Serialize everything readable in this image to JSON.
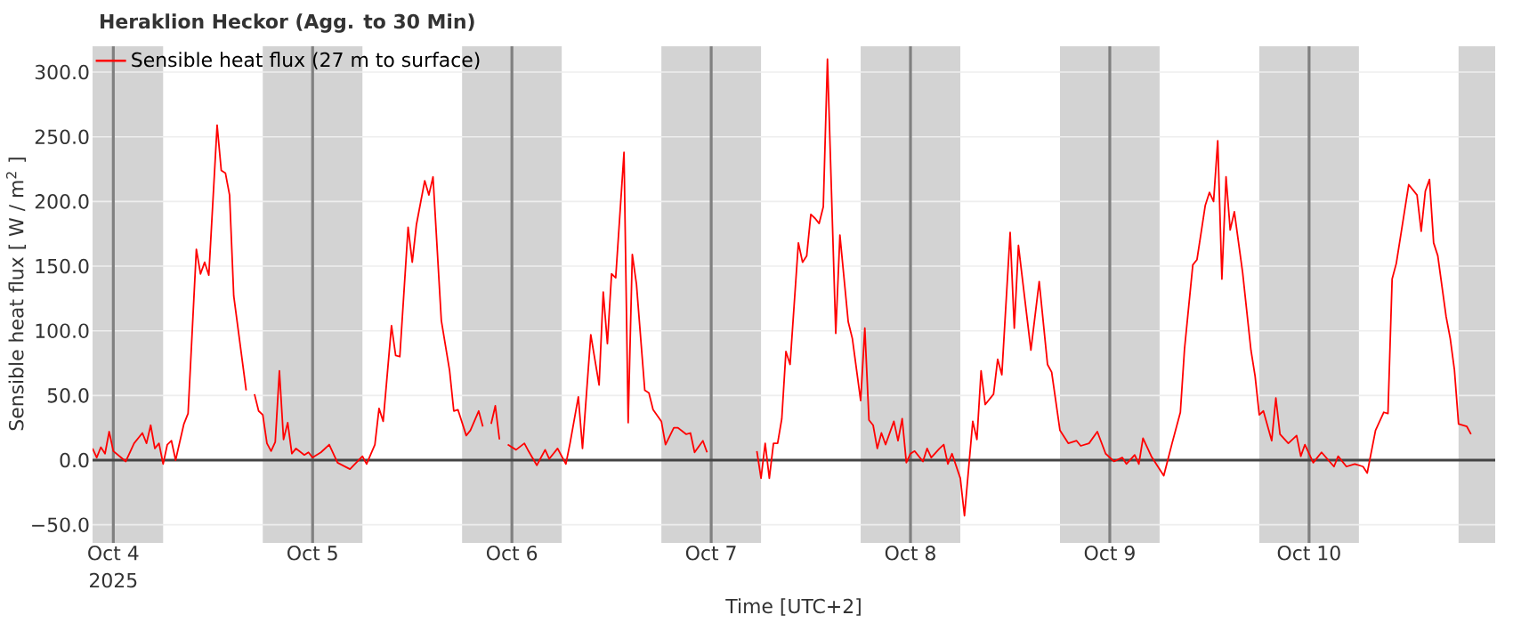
{
  "chart_data": {
    "type": "line",
    "title": "Heraklion Heckor (Agg. to 30 Min)",
    "xlabel": "Time [UTC+2]",
    "ylabel": "Sensible heat flux [ W / m$^{2}$ ]",
    "annotations": [
      "2025"
    ],
    "xlim": [
      "2025-10-03T21:30",
      "2025-10-10T22:25"
    ],
    "xticks": [
      {
        "value": "2025-10-04",
        "label": "Oct 4"
      },
      {
        "value": "2025-10-05",
        "label": "Oct 5"
      },
      {
        "value": "2025-10-06",
        "label": "Oct 6"
      },
      {
        "value": "2025-10-07",
        "label": "Oct 7"
      },
      {
        "value": "2025-10-08",
        "label": "Oct 8"
      },
      {
        "value": "2025-10-09",
        "label": "Oct 9"
      },
      {
        "value": "2025-10-10",
        "label": "Oct 10"
      }
    ],
    "ylim": [
      -64,
      320
    ],
    "yticks": [
      {
        "value": -50,
        "label": "−50.0"
      },
      {
        "value": 0,
        "label": "0.0"
      },
      {
        "value": 50,
        "label": "50.0"
      },
      {
        "value": 100,
        "label": "100.0"
      },
      {
        "value": 150,
        "label": "150.0"
      },
      {
        "value": 200,
        "label": "200.0"
      },
      {
        "value": 250,
        "label": "250.0"
      },
      {
        "value": 300,
        "label": "300.0"
      }
    ],
    "grid": true,
    "legend": "top left",
    "line_style": "solid",
    "ref_lines": [
      {
        "axis": "y",
        "value": 0,
        "color": "#444444"
      }
    ],
    "bands": [
      {
        "axis": "x",
        "from": "2025-10-03T21:30",
        "to": "2025-10-04T06:00",
        "color": "#d3d3d3"
      },
      {
        "axis": "x",
        "from": "2025-10-04T18:00",
        "to": "2025-10-05T06:00",
        "color": "#d3d3d3"
      },
      {
        "axis": "x",
        "from": "2025-10-05T18:00",
        "to": "2025-10-06T06:00",
        "color": "#d3d3d3"
      },
      {
        "axis": "x",
        "from": "2025-10-06T18:00",
        "to": "2025-10-07T06:00",
        "color": "#d3d3d3"
      },
      {
        "axis": "x",
        "from": "2025-10-07T18:00",
        "to": "2025-10-08T06:00",
        "color": "#d3d3d3"
      },
      {
        "axis": "x",
        "from": "2025-10-08T18:00",
        "to": "2025-10-09T06:00",
        "color": "#d3d3d3"
      },
      {
        "axis": "x",
        "from": "2025-10-09T18:00",
        "to": "2025-10-10T06:00",
        "color": "#d3d3d3"
      },
      {
        "axis": "x",
        "from": "2025-10-10T18:00",
        "to": "2025-10-10T22:25",
        "color": "#d3d3d3"
      }
    ],
    "series": [
      {
        "name": "Sensible heat flux (27 m to surface)",
        "color": "#ff0000",
        "x": [
          "2025-10-03T21:30",
          "2025-10-03T22:00",
          "2025-10-03T22:30",
          "2025-10-03T23:00",
          "2025-10-03T23:30",
          "2025-10-04T00:00",
          "2025-10-04T01:30",
          "2025-10-04T02:30",
          "2025-10-04T03:30",
          "2025-10-04T04:00",
          "2025-10-04T04:30",
          "2025-10-04T05:00",
          "2025-10-04T05:30",
          "2025-10-04T06:00",
          "2025-10-04T06:30",
          "2025-10-04T07:00",
          "2025-10-04T07:30",
          "2025-10-04T08:30",
          "2025-10-04T09:00",
          "2025-10-04T10:00",
          "2025-10-04T10:30",
          "2025-10-04T11:00",
          "2025-10-04T11:30",
          "2025-10-04T12:30",
          "2025-10-04T13:00",
          "2025-10-04T13:30",
          "2025-10-04T14:00",
          "2025-10-04T14:30",
          "2025-10-04T16:00",
          "2025-10-04T16:30",
          "2025-10-04T17:00",
          "2025-10-04T17:30",
          "2025-10-04T18:00",
          "2025-10-04T18:30",
          "2025-10-04T19:00",
          "2025-10-04T19:30",
          "2025-10-04T20:00",
          "2025-10-04T20:30",
          "2025-10-04T21:00",
          "2025-10-04T21:30",
          "2025-10-04T22:00",
          "2025-10-04T23:00",
          "2025-10-04T23:30",
          "2025-10-05T00:00",
          "2025-10-05T01:00",
          "2025-10-05T02:00",
          "2025-10-05T03:00",
          "2025-10-05T04:30",
          "2025-10-05T06:00",
          "2025-10-05T06:30",
          "2025-10-05T07:30",
          "2025-10-05T08:00",
          "2025-10-05T08:30",
          "2025-10-05T09:30",
          "2025-10-05T10:00",
          "2025-10-05T10:30",
          "2025-10-05T11:30",
          "2025-10-05T12:00",
          "2025-10-05T12:30",
          "2025-10-05T13:30",
          "2025-10-05T14:00",
          "2025-10-05T14:30",
          "2025-10-05T15:30",
          "2025-10-05T16:30",
          "2025-10-05T17:00",
          "2025-10-05T17:30",
          "2025-10-05T18:30",
          "2025-10-05T19:00",
          "2025-10-05T20:00",
          "2025-10-05T20:30",
          "2025-10-05T21:00",
          "2025-10-05T21:30",
          "2025-10-05T22:00",
          "2025-10-05T22:30",
          "2025-10-05T23:00",
          "2025-10-05T23:30",
          "2025-10-06T00:30",
          "2025-10-06T01:30",
          "2025-10-06T02:00",
          "2025-10-06T03:00",
          "2025-10-06T04:00",
          "2025-10-06T04:30",
          "2025-10-06T05:30",
          "2025-10-06T06:30",
          "2025-10-06T07:00",
          "2025-10-06T08:00",
          "2025-10-06T08:30",
          "2025-10-06T09:30",
          "2025-10-06T10:30",
          "2025-10-06T11:00",
          "2025-10-06T11:30",
          "2025-10-06T12:00",
          "2025-10-06T12:30",
          "2025-10-06T13:30",
          "2025-10-06T14:00",
          "2025-10-06T14:30",
          "2025-10-06T15:00",
          "2025-10-06T16:00",
          "2025-10-06T16:30",
          "2025-10-06T17:00",
          "2025-10-06T18:00",
          "2025-10-06T18:30",
          "2025-10-06T19:30",
          "2025-10-06T20:00",
          "2025-10-06T21:00",
          "2025-10-06T21:30",
          "2025-10-06T22:00",
          "2025-10-06T23:00",
          "2025-10-06T23:30",
          "2025-10-07T00:00",
          "2025-10-07T05:30",
          "2025-10-07T06:00",
          "2025-10-07T06:30",
          "2025-10-07T07:00",
          "2025-10-07T07:30",
          "2025-10-07T08:00",
          "2025-10-07T08:30",
          "2025-10-07T09:00",
          "2025-10-07T09:30",
          "2025-10-07T10:30",
          "2025-10-07T11:00",
          "2025-10-07T11:30",
          "2025-10-07T12:00",
          "2025-10-07T12:30",
          "2025-10-07T13:00",
          "2025-10-07T13:30",
          "2025-10-07T14:00",
          "2025-10-07T15:00",
          "2025-10-07T15:30",
          "2025-10-07T16:30",
          "2025-10-07T17:00",
          "2025-10-07T18:00",
          "2025-10-07T18:30",
          "2025-10-07T19:00",
          "2025-10-07T19:30",
          "2025-10-07T20:00",
          "2025-10-07T20:30",
          "2025-10-07T21:00",
          "2025-10-07T22:00",
          "2025-10-07T22:30",
          "2025-10-07T23:00",
          "2025-10-07T23:30",
          "2025-10-08T00:00",
          "2025-10-08T00:30",
          "2025-10-08T01:30",
          "2025-10-08T02:00",
          "2025-10-08T02:30",
          "2025-10-08T03:30",
          "2025-10-08T04:00",
          "2025-10-08T04:30",
          "2025-10-08T05:00",
          "2025-10-08T06:00",
          "2025-10-08T06:30",
          "2025-10-08T07:30",
          "2025-10-08T08:00",
          "2025-10-08T08:30",
          "2025-10-08T09:00",
          "2025-10-08T10:00",
          "2025-10-08T10:30",
          "2025-10-08T11:00",
          "2025-10-08T12:00",
          "2025-10-08T12:30",
          "2025-10-08T13:00",
          "2025-10-08T14:30",
          "2025-10-08T15:30",
          "2025-10-08T16:30",
          "2025-10-08T17:00",
          "2025-10-08T18:00",
          "2025-10-08T19:00",
          "2025-10-08T20:00",
          "2025-10-08T20:30",
          "2025-10-08T21:30",
          "2025-10-08T22:30",
          "2025-10-08T23:30",
          "2025-10-09T00:30",
          "2025-10-09T01:30",
          "2025-10-09T02:00",
          "2025-10-09T03:00",
          "2025-10-09T03:30",
          "2025-10-09T04:00",
          "2025-10-09T05:00",
          "2025-10-09T06:30",
          "2025-10-09T07:30",
          "2025-10-09T08:30",
          "2025-10-09T09:00",
          "2025-10-09T10:00",
          "2025-10-09T10:30",
          "2025-10-09T11:30",
          "2025-10-09T12:00",
          "2025-10-09T12:30",
          "2025-10-09T13:00",
          "2025-10-09T13:30",
          "2025-10-09T14:00",
          "2025-10-09T14:30",
          "2025-10-09T15:00",
          "2025-10-09T16:00",
          "2025-10-09T17:00",
          "2025-10-09T17:30",
          "2025-10-09T18:00",
          "2025-10-09T18:30",
          "2025-10-09T19:30",
          "2025-10-09T20:00",
          "2025-10-09T20:30",
          "2025-10-09T21:30",
          "2025-10-09T22:30",
          "2025-10-09T23:00",
          "2025-10-09T23:30",
          "2025-10-10T00:30",
          "2025-10-10T01:30",
          "2025-10-10T03:00",
          "2025-10-10T03:30",
          "2025-10-10T04:30",
          "2025-10-10T05:30",
          "2025-10-10T06:30",
          "2025-10-10T07:00",
          "2025-10-10T08:00",
          "2025-10-10T09:00",
          "2025-10-10T09:30",
          "2025-10-10T10:00",
          "2025-10-10T10:30",
          "2025-10-10T12:00",
          "2025-10-10T13:00",
          "2025-10-10T13:30",
          "2025-10-10T14:00",
          "2025-10-10T14:30",
          "2025-10-10T15:00",
          "2025-10-10T15:30",
          "2025-10-10T16:30",
          "2025-10-10T17:00",
          "2025-10-10T17:30",
          "2025-10-10T18:00",
          "2025-10-10T19:00",
          "2025-10-10T19:30"
        ],
        "values": [
          9,
          2,
          10,
          5,
          22,
          7,
          -1,
          13,
          21,
          13,
          27,
          9,
          13,
          -3,
          12,
          15,
          0,
          28,
          36,
          163,
          144,
          153,
          143,
          259,
          224,
          222,
          205,
          127,
          54,
          null,
          51,
          38,
          35,
          13,
          7,
          14,
          69,
          16,
          29,
          5,
          9,
          4,
          6,
          2,
          6,
          12,
          -2,
          -7,
          3,
          -3,
          12,
          40,
          30,
          104,
          81,
          80,
          180,
          153,
          182,
          216,
          205,
          219,
          108,
          69,
          38,
          39,
          19,
          23,
          38,
          26,
          null,
          28,
          42,
          16,
          null,
          12,
          8,
          13,
          7,
          -4,
          8,
          1,
          9,
          -3,
          13,
          49,
          9,
          97,
          58,
          130,
          90,
          144,
          141,
          238,
          29,
          159,
          136,
          54,
          52,
          39,
          30,
          12,
          25,
          25,
          20,
          21,
          6,
          15,
          6,
          null,
          7,
          -14,
          13,
          -14,
          13,
          13,
          32,
          84,
          74,
          168,
          153,
          158,
          190,
          187,
          183,
          196,
          310,
          98,
          174,
          107,
          94,
          46,
          102,
          31,
          27,
          9,
          21,
          12,
          30,
          15,
          32,
          -2,
          5,
          7,
          -1,
          9,
          2,
          9,
          12,
          -3,
          5,
          -14,
          -43,
          30,
          16,
          69,
          43,
          51,
          78,
          66,
          176,
          102,
          166,
          85,
          138,
          74,
          68,
          23,
          13,
          15,
          11,
          13,
          22,
          5,
          -1,
          2,
          -3,
          4,
          -3,
          17,
          3,
          -12,
          13,
          37,
          86,
          151,
          155,
          197,
          207,
          200,
          247,
          140,
          219,
          178,
          192,
          145,
          85,
          65,
          35,
          38,
          15,
          48,
          20,
          13,
          19,
          3,
          12,
          -2,
          6,
          -5,
          3,
          -5,
          -3,
          -5,
          -10,
          23,
          37,
          36,
          140,
          152,
          213,
          205,
          177,
          208,
          217,
          168,
          158,
          111,
          94,
          70,
          28,
          26,
          20
        ]
      }
    ]
  }
}
